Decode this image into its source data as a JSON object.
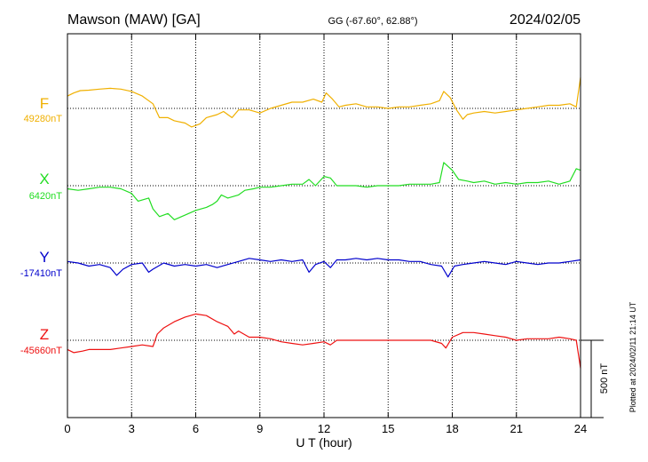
{
  "header": {
    "station": "Mawson (MAW)  [GA]",
    "coords": "GG (-67.60°,  62.88°)",
    "date": "2024/02/05"
  },
  "footer": {
    "plotted": "Plotted at 2024/02/11 21:14 UT"
  },
  "chart_data": {
    "type": "line",
    "title": "Mawson (MAW)  [GA]",
    "xlabel": "U T (hour)",
    "xlim": [
      0,
      24
    ],
    "xticks": [
      "0",
      "3",
      "6",
      "9",
      "12",
      "15",
      "18",
      "21",
      "24"
    ],
    "grid": "vertical dotted lines every 3 hours",
    "scale_bar": {
      "label": "500 nT",
      "value_nT": 500
    },
    "series": [
      {
        "name": "F",
        "baseline_label": "49280nT",
        "baseline_nT": 49280,
        "color": "#f0b000",
        "points": [
          [
            0,
            80
          ],
          [
            0.3,
            100
          ],
          [
            0.6,
            115
          ],
          [
            1,
            118
          ],
          [
            1.5,
            125
          ],
          [
            2,
            130
          ],
          [
            2.5,
            125
          ],
          [
            3,
            110
          ],
          [
            3.5,
            80
          ],
          [
            4,
            30
          ],
          [
            4.3,
            -60
          ],
          [
            4.7,
            -60
          ],
          [
            5,
            -80
          ],
          [
            5.5,
            -95
          ],
          [
            5.8,
            -120
          ],
          [
            6.2,
            -100
          ],
          [
            6.5,
            -60
          ],
          [
            7,
            -40
          ],
          [
            7.3,
            -20
          ],
          [
            7.7,
            -60
          ],
          [
            8,
            -10
          ],
          [
            8.5,
            -10
          ],
          [
            9,
            -30
          ],
          [
            9.5,
            0
          ],
          [
            10,
            20
          ],
          [
            10.5,
            40
          ],
          [
            11,
            40
          ],
          [
            11.5,
            60
          ],
          [
            11.9,
            40
          ],
          [
            12.1,
            100
          ],
          [
            12.4,
            60
          ],
          [
            12.7,
            10
          ],
          [
            13,
            20
          ],
          [
            13.5,
            30
          ],
          [
            14,
            10
          ],
          [
            14.5,
            10
          ],
          [
            15,
            0
          ],
          [
            15.5,
            10
          ],
          [
            16,
            10
          ],
          [
            16.5,
            20
          ],
          [
            17,
            30
          ],
          [
            17.4,
            50
          ],
          [
            17.6,
            110
          ],
          [
            17.9,
            70
          ],
          [
            18.2,
            -10
          ],
          [
            18.5,
            -70
          ],
          [
            18.7,
            -40
          ],
          [
            19,
            -30
          ],
          [
            19.5,
            -20
          ],
          [
            20,
            -30
          ],
          [
            20.5,
            -20
          ],
          [
            21,
            -10
          ],
          [
            21.5,
            0
          ],
          [
            22,
            10
          ],
          [
            22.5,
            20
          ],
          [
            23,
            20
          ],
          [
            23.5,
            30
          ],
          [
            23.8,
            10
          ],
          [
            24,
            200
          ]
        ]
      },
      {
        "name": "X",
        "baseline_label": "6420nT",
        "baseline_nT": 6420,
        "color": "#22dd22",
        "points": [
          [
            0,
            -20
          ],
          [
            0.5,
            -30
          ],
          [
            1,
            -20
          ],
          [
            1.5,
            -10
          ],
          [
            2,
            -10
          ],
          [
            2.5,
            -20
          ],
          [
            3,
            -50
          ],
          [
            3.3,
            -100
          ],
          [
            3.8,
            -80
          ],
          [
            4,
            -150
          ],
          [
            4.3,
            -200
          ],
          [
            4.7,
            -180
          ],
          [
            5,
            -220
          ],
          [
            5.5,
            -190
          ],
          [
            6,
            -160
          ],
          [
            6.5,
            -140
          ],
          [
            6.8,
            -120
          ],
          [
            7,
            -100
          ],
          [
            7.2,
            -60
          ],
          [
            7.5,
            -80
          ],
          [
            8,
            -60
          ],
          [
            8.3,
            -30
          ],
          [
            8.7,
            -20
          ],
          [
            9,
            -10
          ],
          [
            9.5,
            -10
          ],
          [
            10,
            0
          ],
          [
            10.5,
            10
          ],
          [
            11,
            10
          ],
          [
            11.3,
            40
          ],
          [
            11.6,
            0
          ],
          [
            12,
            60
          ],
          [
            12.3,
            50
          ],
          [
            12.6,
            0
          ],
          [
            13,
            0
          ],
          [
            13.5,
            0
          ],
          [
            14,
            -10
          ],
          [
            14.5,
            0
          ],
          [
            15,
            0
          ],
          [
            15.5,
            0
          ],
          [
            16,
            10
          ],
          [
            16.5,
            10
          ],
          [
            17,
            10
          ],
          [
            17.4,
            20
          ],
          [
            17.6,
            150
          ],
          [
            18,
            100
          ],
          [
            18.3,
            40
          ],
          [
            18.7,
            30
          ],
          [
            19,
            20
          ],
          [
            19.5,
            30
          ],
          [
            20,
            10
          ],
          [
            20.5,
            20
          ],
          [
            21,
            10
          ],
          [
            21.5,
            20
          ],
          [
            22,
            20
          ],
          [
            22.5,
            30
          ],
          [
            23,
            10
          ],
          [
            23.5,
            30
          ],
          [
            23.8,
            110
          ],
          [
            24,
            100
          ]
        ]
      },
      {
        "name": "Y",
        "baseline_label": "-17410nT",
        "baseline_nT": -17410,
        "color": "#0000cc",
        "points": [
          [
            0,
            10
          ],
          [
            0.5,
            0
          ],
          [
            1,
            -20
          ],
          [
            1.5,
            -10
          ],
          [
            2,
            -30
          ],
          [
            2.3,
            -80
          ],
          [
            2.6,
            -40
          ],
          [
            3,
            -10
          ],
          [
            3.5,
            0
          ],
          [
            3.8,
            -60
          ],
          [
            4,
            -40
          ],
          [
            4.5,
            0
          ],
          [
            5,
            -20
          ],
          [
            5.5,
            -10
          ],
          [
            6,
            -20
          ],
          [
            6.5,
            -10
          ],
          [
            7,
            -30
          ],
          [
            7.5,
            -10
          ],
          [
            8,
            10
          ],
          [
            8.5,
            30
          ],
          [
            9,
            20
          ],
          [
            9.5,
            10
          ],
          [
            10,
            20
          ],
          [
            10.5,
            10
          ],
          [
            11,
            20
          ],
          [
            11.3,
            -60
          ],
          [
            11.6,
            -10
          ],
          [
            12,
            10
          ],
          [
            12.3,
            -30
          ],
          [
            12.6,
            20
          ],
          [
            13,
            20
          ],
          [
            13.5,
            30
          ],
          [
            14,
            20
          ],
          [
            14.5,
            30
          ],
          [
            15,
            20
          ],
          [
            15.5,
            20
          ],
          [
            16,
            10
          ],
          [
            16.5,
            10
          ],
          [
            17,
            -10
          ],
          [
            17.5,
            -20
          ],
          [
            17.8,
            -90
          ],
          [
            18.1,
            -20
          ],
          [
            18.5,
            -10
          ],
          [
            19,
            0
          ],
          [
            19.5,
            10
          ],
          [
            20,
            0
          ],
          [
            20.5,
            -10
          ],
          [
            21,
            10
          ],
          [
            21.5,
            0
          ],
          [
            22,
            -10
          ],
          [
            22.5,
            0
          ],
          [
            23,
            0
          ],
          [
            23.5,
            10
          ],
          [
            24,
            20
          ]
        ]
      },
      {
        "name": "Z",
        "baseline_label": "-45660nT",
        "baseline_nT": -45660,
        "color": "#ee1111",
        "points": [
          [
            0,
            -60
          ],
          [
            0.3,
            -80
          ],
          [
            0.7,
            -70
          ],
          [
            1,
            -60
          ],
          [
            1.5,
            -60
          ],
          [
            2,
            -60
          ],
          [
            2.5,
            -50
          ],
          [
            3,
            -40
          ],
          [
            3.5,
            -30
          ],
          [
            4,
            -40
          ],
          [
            4.2,
            40
          ],
          [
            4.5,
            80
          ],
          [
            5,
            120
          ],
          [
            5.5,
            150
          ],
          [
            6,
            170
          ],
          [
            6.5,
            160
          ],
          [
            7,
            120
          ],
          [
            7.5,
            90
          ],
          [
            7.8,
            40
          ],
          [
            8,
            60
          ],
          [
            8.5,
            20
          ],
          [
            9,
            20
          ],
          [
            9.5,
            10
          ],
          [
            10,
            -10
          ],
          [
            10.5,
            -20
          ],
          [
            11,
            -30
          ],
          [
            11.5,
            -20
          ],
          [
            12,
            -10
          ],
          [
            12.3,
            -30
          ],
          [
            12.6,
            0
          ],
          [
            13,
            0
          ],
          [
            13.5,
            0
          ],
          [
            14,
            0
          ],
          [
            14.5,
            0
          ],
          [
            15,
            0
          ],
          [
            15.5,
            0
          ],
          [
            16,
            0
          ],
          [
            16.5,
            0
          ],
          [
            17,
            0
          ],
          [
            17.5,
            -20
          ],
          [
            17.7,
            -50
          ],
          [
            18,
            20
          ],
          [
            18.5,
            50
          ],
          [
            19,
            50
          ],
          [
            19.5,
            40
          ],
          [
            20,
            30
          ],
          [
            20.5,
            20
          ],
          [
            21,
            0
          ],
          [
            21.5,
            10
          ],
          [
            22,
            10
          ],
          [
            22.5,
            10
          ],
          [
            23,
            20
          ],
          [
            23.5,
            10
          ],
          [
            23.8,
            0
          ],
          [
            24,
            -180
          ]
        ]
      }
    ]
  }
}
